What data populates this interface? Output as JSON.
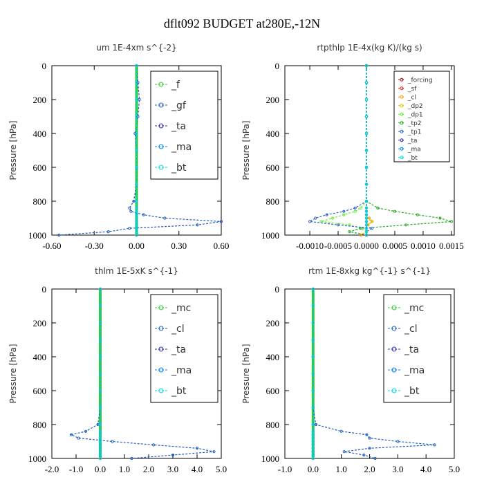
{
  "title": "dflt092  BUDGET at280E,-12N",
  "chart_data": [
    {
      "type": "line",
      "title": "um  1E-4xm s^{-2}",
      "ylabel": "Pressure [hPa]",
      "y": [
        0,
        100,
        200,
        300,
        400,
        500,
        600,
        700,
        800,
        840,
        860,
        880,
        900,
        920,
        940,
        960,
        980,
        1000
      ],
      "xlim": [
        -0.6,
        0.6
      ],
      "ylim": [
        1000,
        0
      ],
      "xticks": [
        {
          "value": -0.6,
          "label": "-0.60"
        },
        {
          "value": -0.3,
          "label": "-0.30"
        },
        {
          "value": 0,
          "label": "0.00"
        },
        {
          "value": 0.3,
          "label": "0.30"
        },
        {
          "value": 0.6,
          "label": "0.60"
        }
      ],
      "yticks": [
        0,
        200,
        400,
        600,
        800,
        1000
      ],
      "series": [
        {
          "name": "_f",
          "color": "#33cc33",
          "values": [
            0,
            0,
            0,
            0,
            0,
            0,
            0,
            0,
            0,
            0,
            0,
            0,
            0,
            0,
            0,
            0,
            0,
            0
          ]
        },
        {
          "name": "_gf",
          "color": "#1f5fbf",
          "values": [
            0,
            0.01,
            0.02,
            0.01,
            -0.01,
            0,
            0,
            0,
            -0.02,
            -0.05,
            -0.04,
            0.05,
            0.2,
            0.6,
            0.43,
            -0.05,
            -0.2,
            -0.55
          ]
        },
        {
          "name": "_ta",
          "color": "#3030b0",
          "values": [
            0,
            0,
            0,
            0,
            0,
            0,
            0,
            0,
            0,
            0,
            0,
            0,
            0,
            0,
            0,
            0,
            0,
            0
          ]
        },
        {
          "name": "_ma",
          "color": "#0080ff",
          "values": [
            0,
            0,
            0,
            0,
            0,
            0,
            0,
            0,
            0,
            0,
            0,
            0,
            0,
            0,
            0,
            0,
            0,
            0
          ]
        },
        {
          "name": "_bt",
          "color": "#00dddd",
          "values": [
            0,
            0,
            0,
            0,
            0,
            0,
            0,
            0,
            0,
            0,
            0,
            0,
            0,
            0,
            0,
            0,
            0,
            0
          ]
        }
      ]
    },
    {
      "type": "line",
      "title": "rtpthlp  1E-4x(kg K)/(kg s)",
      "ylabel": "Pressure [hPa]",
      "y": [
        0,
        100,
        200,
        300,
        400,
        500,
        600,
        700,
        800,
        840,
        860,
        880,
        900,
        920,
        940,
        960,
        980,
        1000
      ],
      "xlim": [
        -0.00144,
        0.00155
      ],
      "ylim": [
        1000,
        0
      ],
      "xticks": [
        {
          "value": -0.001,
          "label": "-0.0010"
        },
        {
          "value": -0.0005,
          "label": "-0.0005"
        },
        {
          "value": 0,
          "label": "0.0000"
        },
        {
          "value": 0.0005,
          "label": "0.0005"
        },
        {
          "value": 0.001,
          "label": "0.0010"
        },
        {
          "value": 0.0015,
          "label": "0.0015"
        }
      ],
      "yticks": [
        0,
        200,
        400,
        600,
        800,
        1000
      ],
      "legend_size": "small",
      "series": [
        {
          "name": "_forcing",
          "color": "#a01010",
          "values": [
            0,
            0,
            0,
            0,
            0,
            0,
            0,
            0,
            0,
            0,
            0,
            0,
            0,
            0,
            0,
            0,
            0,
            0
          ]
        },
        {
          "name": "_sf",
          "color": "#e02020",
          "values": [
            0,
            0,
            0,
            0,
            0,
            0,
            0,
            0,
            0,
            0,
            0,
            0,
            0,
            0,
            0,
            0,
            0,
            0
          ]
        },
        {
          "name": "_cl",
          "color": "#ff9900",
          "values": [
            0,
            0,
            0,
            0,
            0,
            0,
            0,
            0,
            0,
            0,
            0,
            0,
            5e-05,
            0.0001,
            3e-05,
            0,
            0,
            -0.0001
          ]
        },
        {
          "name": "_dp2",
          "color": "#e0c000",
          "values": [
            0,
            0,
            0,
            0,
            0,
            0,
            0,
            0,
            0,
            0,
            0,
            0,
            0,
            0.0001,
            0,
            0,
            0,
            0
          ]
        },
        {
          "name": "_dp1",
          "color": "#66ee33",
          "values": [
            0,
            0,
            0,
            0,
            0,
            0,
            0,
            0,
            0,
            -0.0001,
            -0.0002,
            -0.0004,
            -0.0006,
            -0.0008,
            -0.0003,
            -0.0001,
            0,
            0
          ]
        },
        {
          "name": "_tp2",
          "color": "#22aa22",
          "values": [
            0,
            0,
            0,
            0,
            0,
            0,
            0,
            0,
            0,
            0.0002,
            0.0005,
            0.0009,
            0.0013,
            0.0015,
            0.0007,
            -0.0001,
            -0.0003,
            0
          ]
        },
        {
          "name": "_tp1",
          "color": "#3366cc",
          "values": [
            0,
            0,
            0,
            0,
            0,
            0,
            0,
            0,
            0,
            -0.0002,
            -0.0004,
            -0.0007,
            -0.0009,
            -0.001,
            -0.0005,
            0.0001,
            0,
            0
          ]
        },
        {
          "name": "_ta",
          "color": "#3030b0",
          "values": [
            0,
            0,
            0,
            0,
            0,
            0,
            0,
            0,
            0,
            0,
            0,
            0,
            0,
            0,
            0,
            0,
            0,
            0
          ]
        },
        {
          "name": "_ma",
          "color": "#0080ff",
          "values": [
            0,
            0,
            0,
            0,
            0,
            0,
            0,
            0,
            0,
            0,
            0,
            0,
            0,
            0,
            0,
            0,
            0,
            0
          ]
        },
        {
          "name": "_bt",
          "color": "#00dddd",
          "values": [
            0,
            0,
            0,
            0,
            0,
            0,
            0,
            0,
            0,
            0,
            0,
            0,
            0,
            0,
            0,
            0,
            0,
            0
          ]
        }
      ]
    },
    {
      "type": "line",
      "title": "thlm  1E-5xK s^{-1}",
      "ylabel": "Pressure [hPa]",
      "y": [
        0,
        100,
        200,
        300,
        400,
        500,
        600,
        700,
        800,
        840,
        860,
        880,
        900,
        920,
        940,
        960,
        980,
        1000
      ],
      "xlim": [
        -2.0,
        5.0
      ],
      "ylim": [
        1000,
        0
      ],
      "xticks": [
        {
          "value": -2,
          "label": "-2.0"
        },
        {
          "value": -1,
          "label": "-1.0"
        },
        {
          "value": 0,
          "label": "0.0"
        },
        {
          "value": 1,
          "label": "1.0"
        },
        {
          "value": 2,
          "label": "2.0"
        },
        {
          "value": 3,
          "label": "3.0"
        },
        {
          "value": 4,
          "label": "4.0"
        },
        {
          "value": 5,
          "label": "5.0"
        }
      ],
      "yticks": [
        0,
        200,
        400,
        600,
        800,
        1000
      ],
      "series": [
        {
          "name": "_mc",
          "color": "#33cc33",
          "values": [
            0,
            0,
            0,
            0,
            0,
            0,
            0,
            0,
            0,
            0,
            0,
            0,
            0,
            0,
            0,
            0,
            0,
            0
          ]
        },
        {
          "name": "_cl",
          "color": "#1f5fbf",
          "values": [
            0,
            0,
            0,
            0,
            0,
            0,
            0,
            0,
            -0.1,
            -0.6,
            -1.2,
            -0.9,
            0.5,
            2.2,
            4.0,
            4.7,
            3.0,
            1.3
          ]
        },
        {
          "name": "_ta",
          "color": "#3030b0",
          "values": [
            0,
            0,
            0,
            0,
            0,
            0,
            0,
            0,
            0,
            0,
            0,
            0,
            0,
            0,
            0,
            0,
            0,
            0
          ]
        },
        {
          "name": "_ma",
          "color": "#0080ff",
          "values": [
            0,
            0,
            0,
            0,
            0,
            0,
            0,
            0,
            0,
            0,
            0,
            0,
            0,
            0,
            0,
            0,
            0,
            0
          ]
        },
        {
          "name": "_bt",
          "color": "#00dddd",
          "values": [
            0,
            0,
            0,
            0,
            0,
            0,
            0,
            0,
            0,
            0,
            0,
            0,
            0,
            0,
            0,
            0,
            0,
            0
          ]
        }
      ]
    },
    {
      "type": "line",
      "title": "rtm  1E-8xkg kg^{-1} s^{-1}",
      "ylabel": "Pressure [hPa]",
      "y": [
        0,
        100,
        200,
        300,
        400,
        500,
        600,
        700,
        800,
        840,
        860,
        880,
        900,
        920,
        940,
        960,
        980,
        1000
      ],
      "xlim": [
        -1.0,
        5.0
      ],
      "ylim": [
        1000,
        0
      ],
      "xticks": [
        {
          "value": -1,
          "label": "-1.0"
        },
        {
          "value": 0,
          "label": "0.0"
        },
        {
          "value": 1,
          "label": "1.0"
        },
        {
          "value": 2,
          "label": "2.0"
        },
        {
          "value": 3,
          "label": "3.0"
        },
        {
          "value": 4,
          "label": "4.0"
        },
        {
          "value": 5,
          "label": "5.0"
        }
      ],
      "yticks": [
        0,
        200,
        400,
        600,
        800,
        1000
      ],
      "series": [
        {
          "name": "_mc",
          "color": "#33cc33",
          "values": [
            0,
            0,
            0,
            0,
            0,
            0,
            0,
            0,
            0,
            0,
            0,
            0,
            0,
            0,
            0,
            0,
            0,
            0
          ]
        },
        {
          "name": "_cl",
          "color": "#1f5fbf",
          "values": [
            0,
            0,
            0,
            0,
            0,
            0,
            0,
            0,
            0.1,
            1.0,
            1.9,
            2.0,
            3.0,
            4.3,
            2.0,
            1.1,
            1.8,
            2.2
          ]
        },
        {
          "name": "_ta",
          "color": "#3030b0",
          "values": [
            0,
            0,
            0,
            0,
            0,
            0,
            0,
            0,
            0,
            0,
            0,
            0,
            0,
            0,
            0,
            0,
            0,
            0
          ]
        },
        {
          "name": "_ma",
          "color": "#0080ff",
          "values": [
            0,
            0,
            0,
            0,
            0,
            0,
            0,
            0,
            0,
            0,
            0,
            0,
            0,
            0,
            0,
            0,
            0,
            0
          ]
        },
        {
          "name": "_bt",
          "color": "#00dddd",
          "values": [
            0,
            0,
            0,
            0,
            0,
            0,
            0,
            0,
            0,
            0,
            0,
            0,
            0,
            0,
            0,
            0,
            0,
            0
          ]
        }
      ]
    }
  ]
}
